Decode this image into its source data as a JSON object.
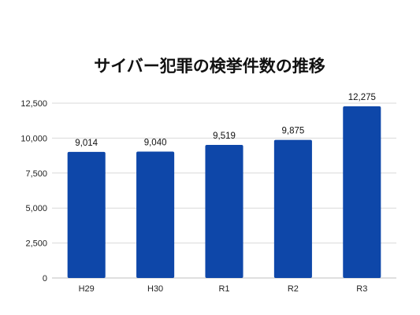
{
  "chart_data": {
    "type": "bar",
    "title": "サイバー犯罪の検挙件数の推移",
    "xlabel": "",
    "ylabel": "",
    "categories": [
      "H29",
      "H30",
      "R1",
      "R2",
      "R3"
    ],
    "values": [
      9014,
      9040,
      9519,
      9875,
      12275
    ],
    "value_labels": [
      "9,014",
      "9,040",
      "9,519",
      "9,875",
      "12,275"
    ],
    "ylim": [
      0,
      12500
    ],
    "yticks": [
      0,
      2500,
      5000,
      7500,
      10000,
      12500
    ],
    "ytick_labels": [
      "0",
      "2,500",
      "5,000",
      "7,500",
      "10,000",
      "12,500"
    ],
    "grid": true,
    "legend": "none",
    "bar_color": "#0e47a9"
  }
}
